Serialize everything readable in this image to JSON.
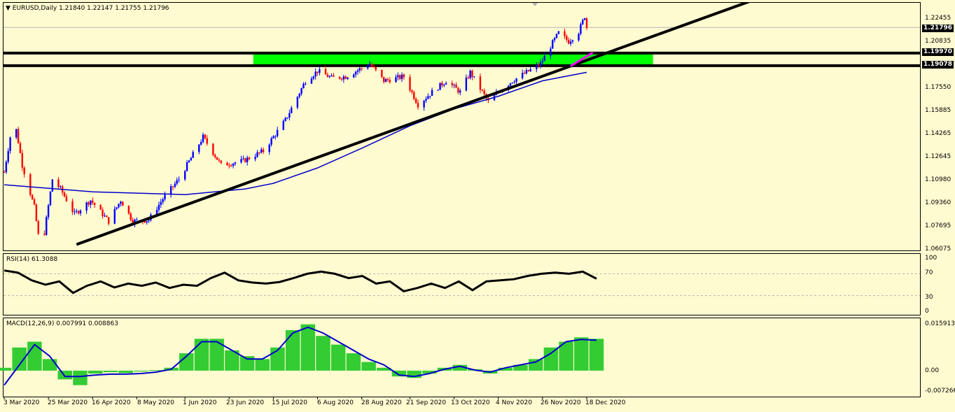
{
  "header": {
    "symbol": "EURUSD,Daily",
    "ohlc": "1.21840 1.22147 1.21755 1.21796"
  },
  "rsi": {
    "title": "RSI(14) 61.3088",
    "levels": [
      "100",
      "70",
      "30",
      "0"
    ]
  },
  "macd": {
    "title": "MACD(12,26,9) 0.007991 0.008863",
    "levels": [
      "0.015913",
      "0.00",
      "-0.007266"
    ]
  },
  "price_axis": [
    "1.22455",
    "1.20835",
    "1.17550",
    "1.15885",
    "1.14265",
    "1.12645",
    "1.10980",
    "1.09360",
    "1.07695",
    "1.06075"
  ],
  "price_tags": {
    "current": "1.21796",
    "resistance": "1.19970",
    "support": "1.19078"
  },
  "x_axis": [
    "3 Mar 2020",
    "25 Mar 2020",
    "16 Apr 2020",
    "8 May 2020",
    "1 Jun 2020",
    "23 Jun 2020",
    "15 Jul 2020",
    "6 Aug 2020",
    "28 Aug 2020",
    "21 Sep 2020",
    "13 Oct 2020",
    "4 Nov 2020",
    "26 Nov 2020",
    "18 Dec 2020"
  ],
  "colors": {
    "background": "#fffbd0",
    "bull": "#0000ff",
    "bear": "#ff0000",
    "zone": "#00ff00",
    "ma": "#0000cd",
    "histogram": "#33cc33",
    "trendline_ext": "#ff00ff"
  },
  "chart_data": [
    {
      "type": "candlestick",
      "title": "EURUSD,Daily",
      "ylim": [
        1.0608,
        1.232
      ],
      "x_start": "3 Mar 2020",
      "x_end": "18 Dec 2020",
      "close_path": [
        [
          "3 Mar 2020",
          1.115
        ],
        [
          "6 Mar 2020",
          1.14
        ],
        [
          "9 Mar 2020",
          1.145
        ],
        [
          "12 Mar 2020",
          1.12
        ],
        [
          "18 Mar 2020",
          1.09
        ],
        [
          "20 Mar 2020",
          1.07
        ],
        [
          "23 Mar 2020",
          1.072
        ],
        [
          "27 Mar 2020",
          1.11
        ],
        [
          "31 Mar 2020",
          1.103
        ],
        [
          "7 Apr 2020",
          1.085
        ],
        [
          "15 Apr 2020",
          1.095
        ],
        [
          "24 Apr 2020",
          1.08
        ],
        [
          "30 Apr 2020",
          1.095
        ],
        [
          "6 May 2020",
          1.08
        ],
        [
          "14 May 2020",
          1.081
        ],
        [
          "21 May 2020",
          1.096
        ],
        [
          "29 May 2020",
          1.11
        ],
        [
          "10 Jun 2020",
          1.14
        ],
        [
          "19 Jun 2020",
          1.12
        ],
        [
          "30 Jun 2020",
          1.123
        ],
        [
          "10 Jul 2020",
          1.13
        ],
        [
          "21 Jul 2020",
          1.152
        ],
        [
          "31 Jul 2020",
          1.18
        ],
        [
          "6 Aug 2020",
          1.187
        ],
        [
          "13 Aug 2020",
          1.182
        ],
        [
          "20 Aug 2020",
          1.183
        ],
        [
          "1 Sep 2020",
          1.192
        ],
        [
          "8 Sep 2020",
          1.18
        ],
        [
          "18 Sep 2020",
          1.183
        ],
        [
          "25 Sep 2020",
          1.163
        ],
        [
          "2 Oct 2020",
          1.172
        ],
        [
          "9 Oct 2020",
          1.18
        ],
        [
          "16 Oct 2020",
          1.172
        ],
        [
          "21 Oct 2020",
          1.186
        ],
        [
          "30 Oct 2020",
          1.165
        ],
        [
          "4 Nov 2020",
          1.172
        ],
        [
          "11 Nov 2020",
          1.18
        ],
        [
          "18 Nov 2020",
          1.186
        ],
        [
          "25 Nov 2020",
          1.192
        ],
        [
          "1 Dec 2020",
          1.207
        ],
        [
          "4 Dec 2020",
          1.214
        ],
        [
          "9 Dec 2020",
          1.208
        ],
        [
          "14 Dec 2020",
          1.215
        ],
        [
          "17 Dec 2020",
          1.226
        ],
        [
          "18 Dec 2020",
          1.218
        ]
      ],
      "moving_average": [
        [
          "3 Mar 2020",
          1.106
        ],
        [
          "16 Apr 2020",
          1.101
        ],
        [
          "1 Jun 2020",
          1.099
        ],
        [
          "1 Jul 2020",
          1.103
        ],
        [
          "15 Jul 2020",
          1.107
        ],
        [
          "6 Aug 2020",
          1.118
        ],
        [
          "28 Aug 2020",
          1.132
        ],
        [
          "21 Sep 2020",
          1.148
        ],
        [
          "13 Oct 2020",
          1.16
        ],
        [
          "4 Nov 2020",
          1.169
        ],
        [
          "26 Nov 2020",
          1.18
        ],
        [
          "18 Dec 2020",
          1.186
        ]
      ],
      "trendline": [
        [
          "8 Apr 2020",
          1.0635
        ],
        [
          "10 Dec 2020",
          1.1905
        ]
      ],
      "trendline_extension": [
        [
          "10 Dec 2020",
          1.1905
        ],
        [
          "21 Dec 2020",
          1.2
        ]
      ],
      "horizontal_levels": [
        1.1997,
        1.19078
      ],
      "zone": {
        "from": "5 Jul 2020",
        "to": "20 Jan 2021",
        "low": 1.19078,
        "high": 1.1997
      }
    },
    {
      "type": "line",
      "title": "RSI(14) 61.3088",
      "ylim": [
        0,
        100
      ],
      "levels": [
        70,
        30
      ],
      "values": [
        76,
        72,
        58,
        50,
        56,
        35,
        48,
        56,
        45,
        52,
        48,
        54,
        44,
        50,
        48,
        62,
        72,
        58,
        54,
        52,
        55,
        62,
        70,
        74,
        70,
        62,
        66,
        52,
        56,
        38,
        44,
        52,
        44,
        56,
        40,
        56,
        58,
        60,
        66,
        70,
        72,
        70,
        74,
        61
      ]
    },
    {
      "type": "bar",
      "title": "MACD(12,26,9) 0.007991 0.008863",
      "ylim": [
        -0.007266,
        0.015913
      ],
      "histogram": [
        0.001,
        0.008,
        0.01,
        0.004,
        -0.003,
        -0.005,
        -0.001,
        -0.0005,
        -0.0008,
        -0.0003,
        0.0002,
        0.001,
        0.006,
        0.011,
        0.011,
        0.007,
        0.005,
        0.004,
        0.008,
        0.014,
        0.016,
        0.012,
        0.009,
        0.006,
        0.003,
        0.001,
        -0.002,
        -0.0025,
        -0.001,
        0.001,
        0.002,
        0.0005,
        -0.001,
        0.001,
        0.002,
        0.004,
        0.008,
        0.01,
        0.0115,
        0.011
      ],
      "signal": [
        -0.005,
        0.002,
        0.009,
        0.005,
        -0.002,
        -0.002,
        -0.0015,
        -0.0012,
        -0.0012,
        -0.001,
        -0.0005,
        0.0005,
        0.005,
        0.01,
        0.01,
        0.007,
        0.004,
        0.004,
        0.007,
        0.013,
        0.015,
        0.013,
        0.01,
        0.007,
        0.004,
        0.002,
        -0.0015,
        -0.002,
        -0.001,
        0.0005,
        0.0015,
        0.0002,
        -0.0005,
        0.001,
        0.002,
        0.003,
        0.006,
        0.01,
        0.0108,
        0.0105
      ]
    }
  ]
}
